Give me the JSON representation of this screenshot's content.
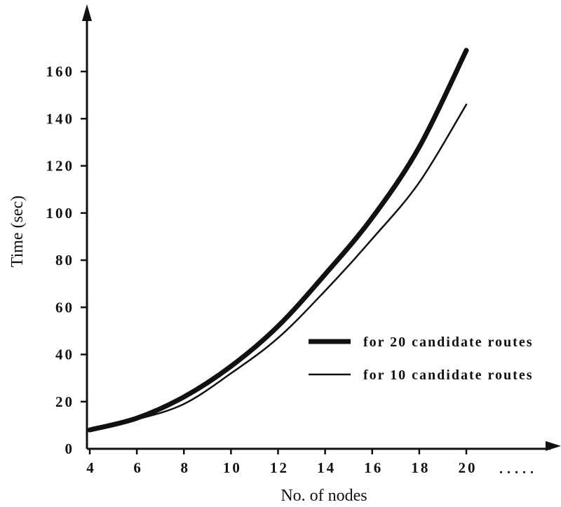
{
  "chart_data": {
    "type": "line",
    "xlabel": "No. of nodes",
    "ylabel": "Time (sec)",
    "xlim": [
      4,
      20
    ],
    "ylim": [
      0,
      160
    ],
    "x_ticks": [
      "4",
      "6",
      "8",
      "10",
      "12",
      "14",
      "16",
      "18",
      "20"
    ],
    "y_ticks": [
      "0",
      "20",
      "40",
      "60",
      "80",
      "100",
      "120",
      "140",
      "160"
    ],
    "x_continuation": ".....",
    "grid": false,
    "legend_position": "right",
    "series": [
      {
        "name": "for 20 candidate routes",
        "style": "thick",
        "color": "#111111",
        "x": [
          4,
          6,
          8,
          10,
          12,
          14,
          16,
          18,
          20
        ],
        "y": [
          8,
          13,
          22,
          35,
          52,
          74,
          98,
          128,
          169
        ]
      },
      {
        "name": "for 10 candidate routes",
        "style": "thin",
        "color": "#111111",
        "x": [
          4,
          6,
          8,
          10,
          12,
          14,
          16,
          18,
          20
        ],
        "y": [
          8,
          12.5,
          19,
          32,
          47,
          67,
          89,
          113,
          146
        ]
      }
    ]
  }
}
